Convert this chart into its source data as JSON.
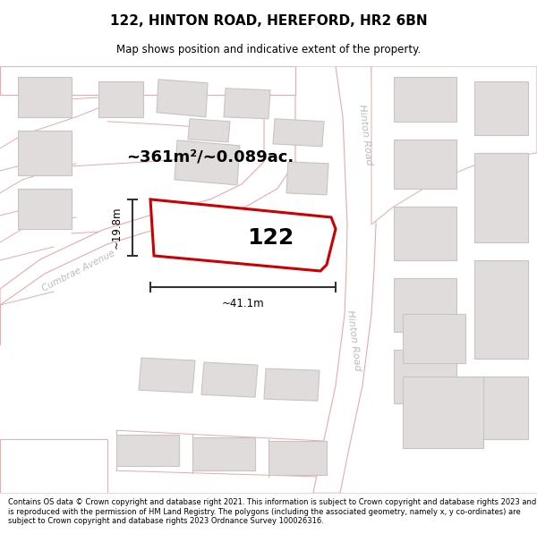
{
  "title": "122, HINTON ROAD, HEREFORD, HR2 6BN",
  "subtitle": "Map shows position and indicative extent of the property.",
  "footer": "Contains OS data © Crown copyright and database right 2021. This information is subject to Crown copyright and database rights 2023 and is reproduced with the permission of HM Land Registry. The polygons (including the associated geometry, namely x, y co-ordinates) are subject to Crown copyright and database rights 2023 Ordnance Survey 100026316.",
  "area_label": "~361m²/~0.089ac.",
  "property_number": "122",
  "width_label": "~41.1m",
  "height_label": "~19.8m",
  "map_bg": "#f7f5f5",
  "road_color": "#ffffff",
  "road_outline": "#e8aaaa",
  "building_color": "#e0dcdc",
  "building_outline": "#c8c4c4",
  "property_outline": "#cc0000",
  "property_fill": "#ffffff",
  "street_label_color": "#bbbbbb",
  "dim_color": "#333333",
  "title_fontsize": 11,
  "subtitle_fontsize": 8.5,
  "footer_fontsize": 6.0
}
